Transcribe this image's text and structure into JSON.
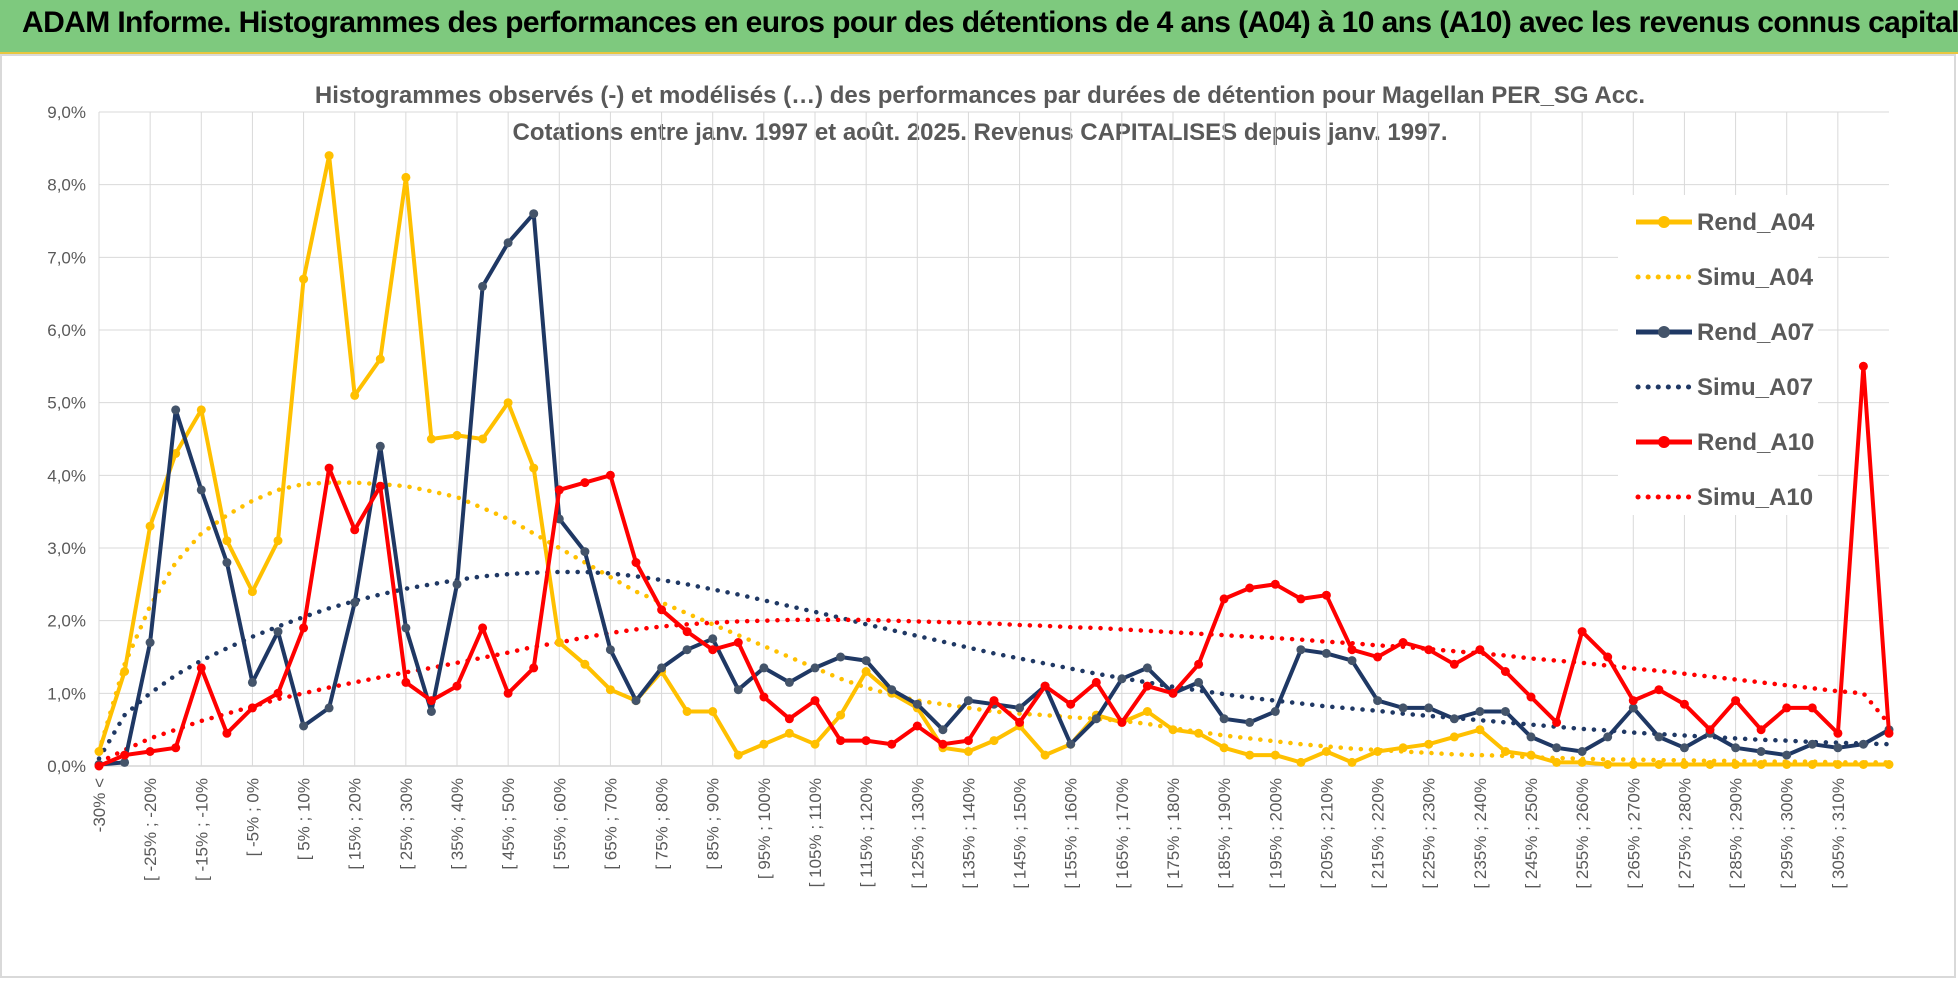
{
  "banner": {
    "text": "ADAM Informe. Histogrammes des performances en euros pour des détentions de 4 ans (A04) à 10 ans (A10) avec les revenus connus capitalisés",
    "color": "#7ec97e"
  },
  "chart_data": {
    "type": "line",
    "title": "Histogrammes observés (-) et modélisés (…) des performances par durées de détention pour Magellan PER_SG Acc.",
    "subtitle": "Cotations entre janv. 1997 et août. 2025. Revenus CAPITALISES depuis janv. 1997.",
    "ylim": [
      0,
      9
    ],
    "y_ticks": [
      "0,0%",
      "1,0%",
      "2,0%",
      "3,0%",
      "4,0%",
      "5,0%",
      "6,0%",
      "7,0%",
      "8,0%",
      "9,0%"
    ],
    "x_tick_labels": [
      "-30% <",
      "[ -25% ; -20%",
      "[ -15% ; -10%",
      "[ -5% ; 0%",
      "[ 5% ; 10%",
      "[ 15% ; 20%",
      "[ 25% ; 30%",
      "[ 35% ; 40%",
      "[ 45% ; 50%",
      "[ 55% ; 60%",
      "[ 65% ; 70%",
      "[ 75% ; 80%",
      "[ 85% ; 90%",
      "[ 95% ; 100%",
      "[ 105% ; 110%",
      "[ 115% ; 120%",
      "[ 125% ; 130%",
      "[ 135% ; 140%",
      "[ 145% ; 150%",
      "[ 155% ; 160%",
      "[ 165% ; 170%",
      "[ 175% ; 180%",
      "[ 185% ; 190%",
      "[ 195% ; 200%",
      "[ 205% ; 210%",
      "[ 215% ; 220%",
      "[ 225% ; 230%",
      "[ 235% ; 240%",
      "[ 245% ; 250%",
      "[ 255% ; 260%",
      "[ 265% ; 270%",
      "[ 275% ; 280%",
      "[ 285% ; 290%",
      "[ 295% ; 300%",
      "[ 305% ; 310%"
    ],
    "grid": true,
    "legend_position": "right",
    "series": [
      {
        "name": "Rend_A04",
        "style": "solid",
        "markers": true,
        "color": "#ffc000",
        "values": [
          0.2,
          1.3,
          3.3,
          4.3,
          4.9,
          3.1,
          2.4,
          3.1,
          6.7,
          8.4,
          5.1,
          5.6,
          8.1,
          4.5,
          4.55,
          4.5,
          5.0,
          4.1,
          1.7,
          1.4,
          1.05,
          0.9,
          1.3,
          0.75,
          0.75,
          0.15,
          0.3,
          0.45,
          0.3,
          0.7,
          1.3,
          1.0,
          0.8,
          0.25,
          0.2,
          0.35,
          0.55,
          0.15,
          0.3,
          0.7,
          0.6,
          0.75,
          0.5,
          0.45,
          0.25,
          0.15,
          0.15,
          0.05,
          0.2,
          0.05,
          0.2,
          0.25,
          0.3,
          0.4,
          0.5,
          0.2,
          0.15,
          0.05,
          0.05,
          0.02,
          0.02,
          0.02,
          0.02,
          0.02,
          0.02,
          0.02,
          0.02,
          0.02,
          0.02,
          0.02,
          0.02
        ]
      },
      {
        "name": "Simu_A04",
        "style": "dotted",
        "markers": false,
        "color": "#ffc000",
        "values": [
          0.2,
          1.4,
          2.2,
          2.8,
          3.2,
          3.45,
          3.65,
          3.8,
          3.88,
          3.9,
          3.9,
          3.88,
          3.85,
          3.78,
          3.7,
          3.55,
          3.4,
          3.2,
          3.0,
          2.8,
          2.6,
          2.4,
          2.25,
          2.1,
          1.95,
          1.8,
          1.65,
          1.5,
          1.35,
          1.2,
          1.08,
          0.98,
          0.9,
          0.85,
          0.8,
          0.75,
          0.72,
          0.7,
          0.67,
          0.65,
          0.62,
          0.58,
          0.52,
          0.47,
          0.42,
          0.38,
          0.34,
          0.3,
          0.27,
          0.24,
          0.22,
          0.2,
          0.18,
          0.16,
          0.15,
          0.14,
          0.12,
          0.11,
          0.1,
          0.09,
          0.09,
          0.08,
          0.08,
          0.07,
          0.07,
          0.06,
          0.06,
          0.06,
          0.05,
          0.05,
          0.05
        ]
      },
      {
        "name": "Rend_A07",
        "style": "solid",
        "markers": true,
        "color": "#1f3864",
        "values": [
          0.02,
          0.05,
          1.7,
          4.9,
          3.8,
          2.8,
          1.15,
          1.85,
          0.55,
          0.8,
          2.25,
          4.4,
          1.9,
          0.75,
          2.5,
          6.6,
          7.2,
          7.6,
          3.4,
          2.95,
          1.6,
          0.9,
          1.35,
          1.6,
          1.75,
          1.05,
          1.35,
          1.15,
          1.35,
          1.5,
          1.45,
          1.05,
          0.85,
          0.5,
          0.9,
          0.85,
          0.8,
          1.1,
          0.3,
          0.65,
          1.2,
          1.35,
          1.0,
          1.15,
          0.65,
          0.6,
          0.75,
          1.6,
          1.55,
          1.45,
          0.9,
          0.8,
          0.8,
          0.65,
          0.75,
          0.75,
          0.4,
          0.25,
          0.2,
          0.4,
          0.8,
          0.4,
          0.25,
          0.45,
          0.25,
          0.2,
          0.15,
          0.3,
          0.25,
          0.3,
          0.5
        ]
      },
      {
        "name": "Simu_A07",
        "style": "dotted",
        "markers": false,
        "color": "#1f3864",
        "values": [
          0.1,
          0.7,
          1.0,
          1.25,
          1.45,
          1.62,
          1.78,
          1.92,
          2.05,
          2.17,
          2.27,
          2.36,
          2.44,
          2.5,
          2.56,
          2.61,
          2.64,
          2.66,
          2.67,
          2.67,
          2.65,
          2.61,
          2.56,
          2.5,
          2.43,
          2.36,
          2.28,
          2.2,
          2.12,
          2.04,
          1.95,
          1.87,
          1.79,
          1.71,
          1.63,
          1.55,
          1.48,
          1.41,
          1.34,
          1.27,
          1.21,
          1.15,
          1.09,
          1.04,
          0.99,
          0.94,
          0.9,
          0.86,
          0.82,
          0.79,
          0.76,
          0.72,
          0.69,
          0.66,
          0.63,
          0.6,
          0.57,
          0.54,
          0.51,
          0.49,
          0.46,
          0.44,
          0.42,
          0.4,
          0.38,
          0.36,
          0.35,
          0.33,
          0.32,
          0.31,
          0.3
        ]
      },
      {
        "name": "Rend_A10",
        "style": "solid",
        "markers": true,
        "color": "#ff0000",
        "values": [
          0.0,
          0.15,
          0.2,
          0.25,
          1.35,
          0.45,
          0.8,
          1.0,
          1.9,
          4.1,
          3.25,
          3.85,
          1.15,
          0.9,
          1.1,
          1.9,
          1.0,
          1.35,
          3.8,
          3.9,
          4.0,
          2.8,
          2.15,
          1.85,
          1.6,
          1.7,
          0.95,
          0.65,
          0.9,
          0.35,
          0.35,
          0.3,
          0.55,
          0.3,
          0.35,
          0.9,
          0.6,
          1.1,
          0.85,
          1.15,
          0.6,
          1.1,
          1.0,
          1.4,
          2.3,
          2.45,
          2.5,
          2.3,
          2.35,
          1.6,
          1.5,
          1.7,
          1.6,
          1.4,
          1.6,
          1.3,
          0.95,
          0.6,
          1.85,
          1.5,
          0.9,
          1.05,
          0.85,
          0.5,
          0.9,
          0.5,
          0.8,
          0.8,
          0.45,
          5.5,
          0.45
        ]
      },
      {
        "name": "Simu_A10",
        "style": "dotted",
        "markers": false,
        "color": "#ff0000",
        "values": [
          0.05,
          0.22,
          0.38,
          0.5,
          0.62,
          0.72,
          0.82,
          0.92,
          1.0,
          1.08,
          1.15,
          1.22,
          1.29,
          1.35,
          1.42,
          1.49,
          1.56,
          1.64,
          1.7,
          1.77,
          1.83,
          1.88,
          1.92,
          1.95,
          1.97,
          1.99,
          2.0,
          2.01,
          2.01,
          2.01,
          2.01,
          2.0,
          1.99,
          1.98,
          1.97,
          1.96,
          1.94,
          1.93,
          1.91,
          1.9,
          1.88,
          1.86,
          1.84,
          1.82,
          1.8,
          1.78,
          1.76,
          1.74,
          1.71,
          1.69,
          1.66,
          1.64,
          1.61,
          1.58,
          1.55,
          1.52,
          1.48,
          1.45,
          1.42,
          1.38,
          1.34,
          1.31,
          1.27,
          1.23,
          1.19,
          1.15,
          1.11,
          1.07,
          1.03,
          1.0,
          0.58
        ]
      }
    ]
  }
}
